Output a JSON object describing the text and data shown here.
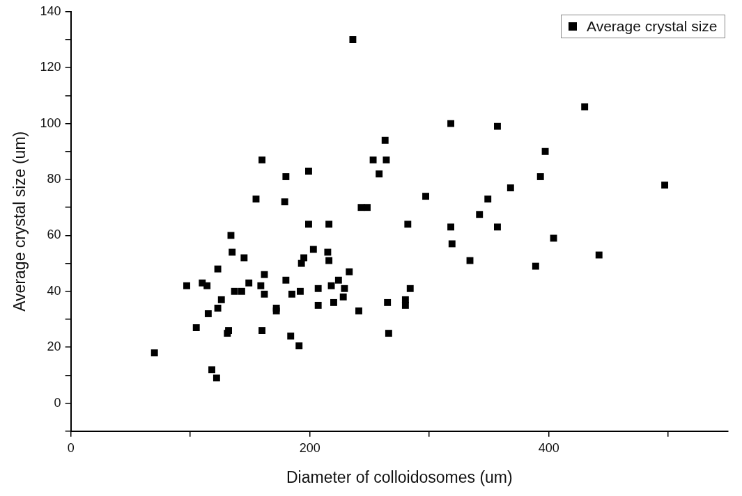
{
  "chart_data": {
    "type": "scatter",
    "xlabel": "Diameter of colloidosomes (um)",
    "ylabel": "Average crystal size (um)",
    "xlim": [
      0,
      550
    ],
    "xticks": [
      0,
      {
        "value": 100,
        "label": null
      },
      200,
      {
        "value": 300,
        "label": null
      },
      400,
      {
        "value": 500,
        "label": null
      }
    ],
    "ylim": [
      -10,
      140
    ],
    "yticks": [
      {
        "value": -10,
        "label": null
      },
      0,
      {
        "value": 10,
        "label": null
      },
      20,
      {
        "value": 30,
        "label": null
      },
      40,
      {
        "value": 50,
        "label": null
      },
      60,
      {
        "value": 70,
        "label": null
      },
      80,
      {
        "value": 90,
        "label": null
      },
      100,
      {
        "value": 110,
        "label": null
      },
      120,
      {
        "value": 130,
        "label": null
      },
      140
    ],
    "grid": false,
    "legend": "top right",
    "marker": "square",
    "series": [
      {
        "name": "Average crystal size",
        "color": "#000000",
        "x": [
          70,
          263,
          160,
          253,
          264,
          199,
          180,
          258,
          155,
          179,
          243,
          248,
          199,
          216,
          134,
          135,
          145,
          203,
          215,
          216,
          195,
          193,
          123,
          233,
          97,
          110,
          114,
          149,
          137,
          143,
          162,
          159,
          162,
          180,
          185,
          192,
          207,
          218,
          224,
          229,
          228,
          220,
          207,
          241,
          126,
          123,
          115,
          172,
          172,
          105,
          132,
          131,
          160,
          184,
          191,
          118,
          122,
          236,
          430,
          318,
          357,
          397,
          497,
          393,
          368,
          297,
          349,
          342,
          282,
          318,
          357,
          319,
          404,
          334,
          442,
          389,
          284,
          265,
          280,
          280,
          266
        ],
        "values": [
          18,
          94,
          87,
          87,
          87,
          83,
          81,
          82,
          73,
          72,
          70,
          70,
          64,
          64,
          60,
          54,
          52,
          55,
          54,
          51,
          52,
          50,
          48,
          47,
          42,
          43,
          42,
          43,
          40,
          40,
          46,
          42,
          39,
          44,
          39,
          40,
          41,
          42,
          44,
          41,
          38,
          36,
          35,
          33,
          37,
          34,
          32,
          34,
          33,
          27,
          26,
          25,
          26,
          24,
          20.5,
          12,
          9,
          130,
          106,
          100,
          99,
          90,
          78,
          81,
          77,
          74,
          73,
          67.5,
          64,
          63,
          63,
          57,
          59,
          51,
          53,
          49,
          41,
          36,
          37,
          35,
          25
        ]
      }
    ]
  }
}
